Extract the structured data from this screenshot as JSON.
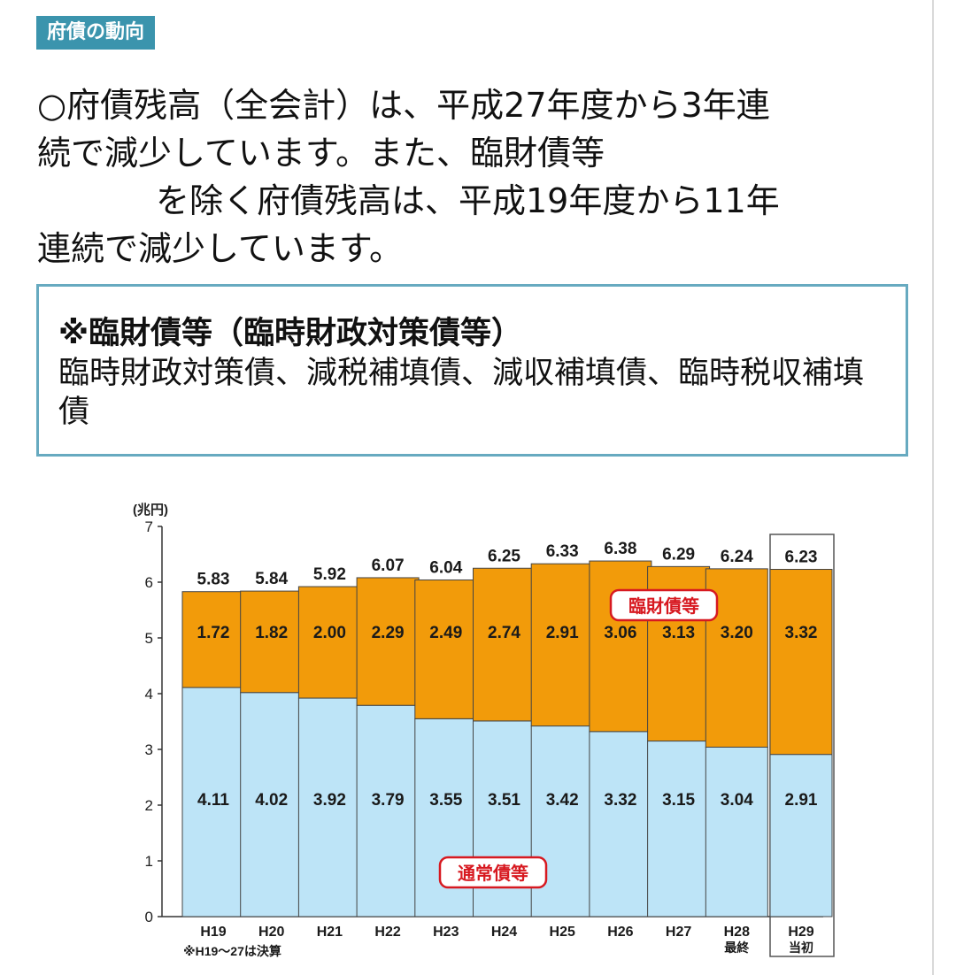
{
  "section_tag": "府債の動向",
  "lead": {
    "line1": "○府債残高（全会計）は、平成27年度から3年連",
    "line2": "続で減少しています。また、臨財債等",
    "line3": "を除く府債残高は、平成19年度から11年",
    "line4": "連続で減少しています。"
  },
  "note": {
    "title": "※臨財債等（臨時財政対策債等）",
    "body": "臨時財政対策債、減税補填債、減収補填債、臨時税収補填債"
  },
  "chart_data": {
    "type": "bar",
    "stacked": true,
    "yunit": "(兆円)",
    "ylim": [
      0,
      7
    ],
    "yticks": [
      0,
      1,
      2,
      3,
      4,
      5,
      6,
      7
    ],
    "categories": [
      "H19",
      "H20",
      "H21",
      "H22",
      "H23",
      "H24",
      "H25",
      "H26",
      "H27",
      "H28",
      "H29"
    ],
    "category_sublabels": [
      "",
      "",
      "",
      "",
      "",
      "",
      "",
      "",
      "",
      "最終",
      "当初"
    ],
    "series": [
      {
        "name": "通常債等",
        "color": "#bde4f7",
        "values": [
          4.11,
          4.02,
          3.92,
          3.79,
          3.55,
          3.51,
          3.42,
          3.32,
          3.15,
          3.04,
          2.91
        ]
      },
      {
        "name": "臨財債等",
        "color": "#f29b0a",
        "values": [
          1.72,
          1.82,
          2.0,
          2.29,
          2.49,
          2.74,
          2.91,
          3.06,
          3.13,
          3.2,
          3.32
        ]
      }
    ],
    "totals": [
      "5.83",
      "5.84",
      "5.92",
      "6.07",
      "6.04",
      "6.25",
      "6.33",
      "6.38",
      "6.29",
      "6.24",
      "6.23"
    ],
    "highlighted_category": "H29",
    "footnote": "※H19～27は決算",
    "legend_placement": "inline labels"
  }
}
